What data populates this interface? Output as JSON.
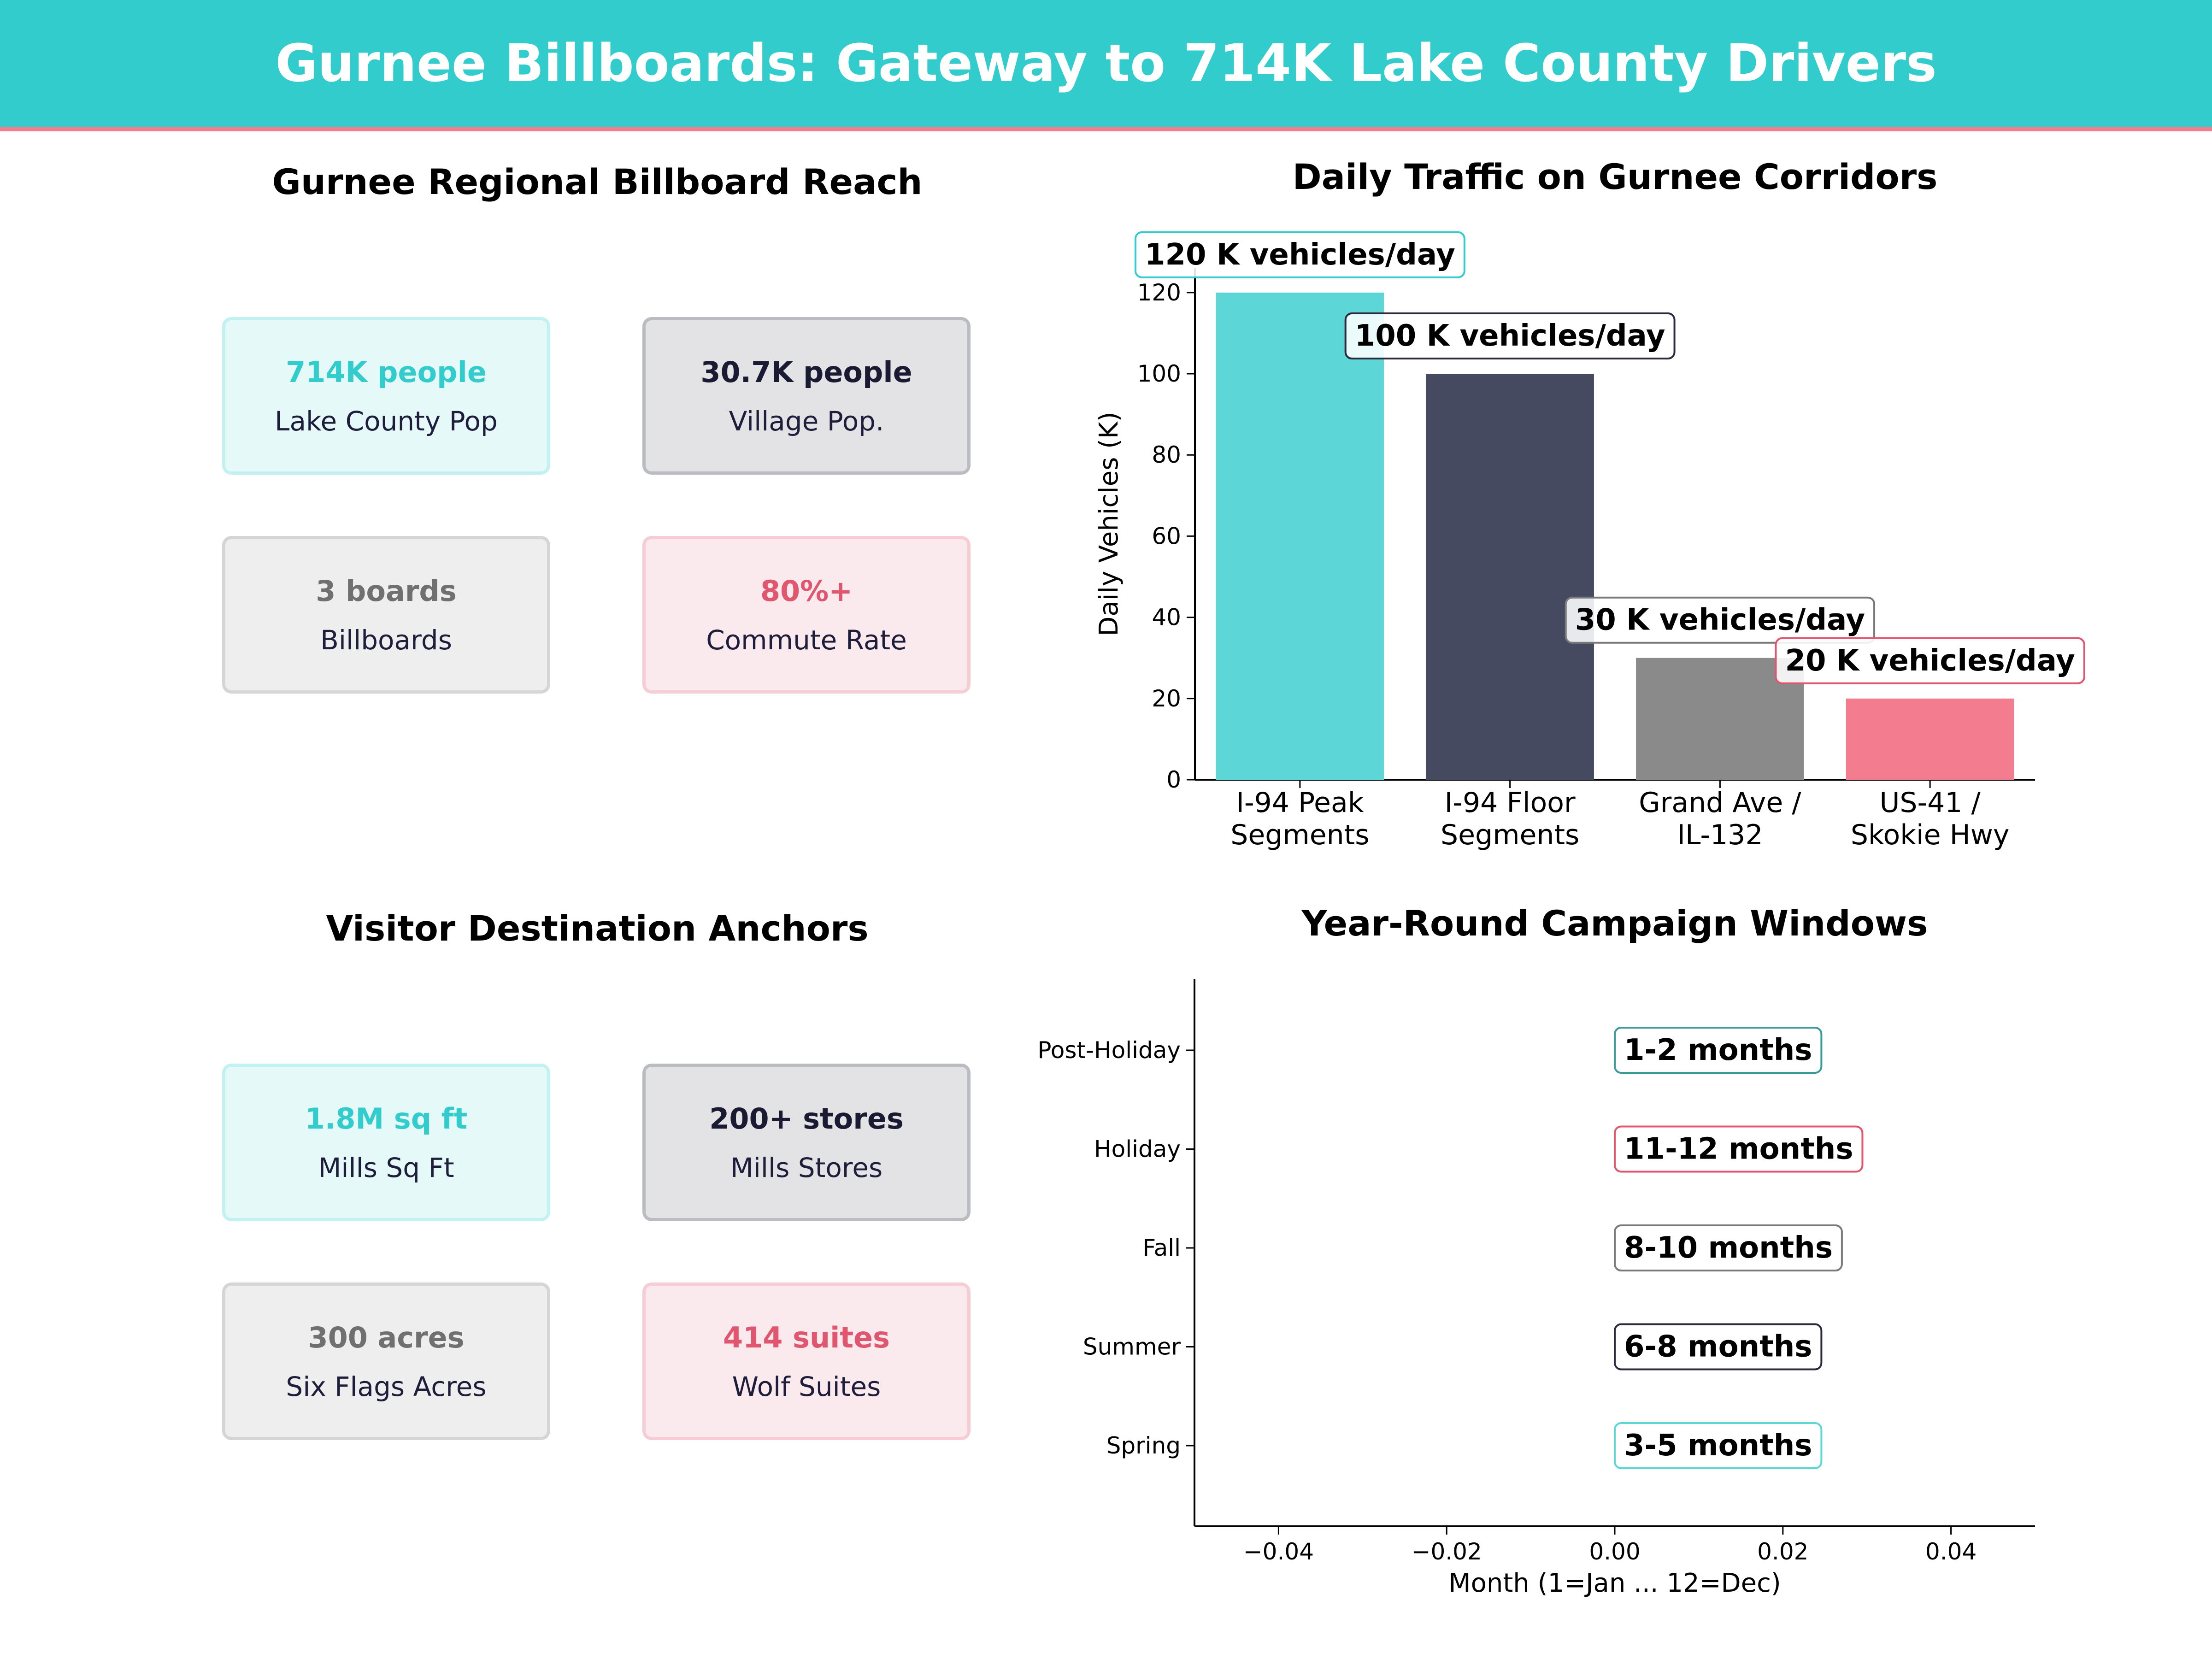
{
  "banner": {
    "title": "Gurnee Billboards: Gateway to 714K Lake County Drivers",
    "bg_color": "#33cccc",
    "rule_color": "#f47c8f"
  },
  "reach": {
    "title": "Gurnee Regional Billboard Reach",
    "cards": [
      {
        "value": "714K people",
        "label": "Lake County Pop",
        "color": "#33cccc"
      },
      {
        "value": "30.7K people",
        "label": "Village Pop.",
        "color": "#1a1a33"
      },
      {
        "value": "3 boards",
        "label": "Billboards",
        "color": "#707070"
      },
      {
        "value": "80%+",
        "label": "Commute Rate",
        "color": "#e0566f"
      }
    ]
  },
  "anchors": {
    "title": "Visitor Destination Anchors",
    "cards": [
      {
        "value": "1.8M sq ft",
        "label": "Mills Sq Ft",
        "color": "#33cccc"
      },
      {
        "value": "200+ stores",
        "label": "Mills Stores",
        "color": "#1a1a33"
      },
      {
        "value": "300 acres",
        "label": "Six Flags Acres",
        "color": "#707070"
      },
      {
        "value": "414 suites",
        "label": "Wolf Suites",
        "color": "#e0566f"
      }
    ]
  },
  "chart_data": [
    {
      "type": "bar",
      "title": "Daily Traffic on Gurnee Corridors",
      "xlabel": "",
      "ylabel": "Daily Vehicles (K)",
      "ylim": [
        0,
        126
      ],
      "yticks": [
        0,
        20,
        40,
        60,
        80,
        100,
        120
      ],
      "categories": [
        [
          "I-94 Peak",
          "Segments"
        ],
        [
          "I-94 Floor",
          "Segments"
        ],
        [
          "Grand Ave /",
          "IL-132"
        ],
        [
          "US-41 /",
          "Skokie Hwy"
        ]
      ],
      "values": [
        120,
        100,
        30,
        20
      ],
      "data_labels": [
        "120 K vehicles/day",
        "100 K vehicles/day",
        "30 K vehicles/day",
        "20 K vehicles/day"
      ],
      "colors": [
        "#5cd6d6",
        "#454a60",
        "#8a8a8a",
        "#f47c8f"
      ],
      "label_borders": [
        "#33cccc",
        "#2a2a3c",
        "#7a7a7a",
        "#e0566f"
      ],
      "grid": false,
      "legend": "none"
    },
    {
      "type": "scatter",
      "title": "Year-Round Campaign Windows",
      "xlabel": "Month (1=Jan ... 12=Dec)",
      "ylabel": "",
      "xlim": [
        -0.05,
        0.05
      ],
      "xticks": [
        -0.04,
        -0.02,
        0.0,
        0.02,
        0.04
      ],
      "xtick_labels": [
        "−0.04",
        "−0.02",
        "0.00",
        "0.02",
        "0.04"
      ],
      "categories": [
        "Spring",
        "Summer",
        "Fall",
        "Holiday",
        "Post-Holiday"
      ],
      "annotations": [
        {
          "category": "Spring",
          "x": 0.0,
          "text": "3-5 months",
          "border": "#5cd6d6"
        },
        {
          "category": "Summer",
          "x": 0.0,
          "text": "6-8 months",
          "border": "#2a2a3c"
        },
        {
          "category": "Fall",
          "x": 0.0,
          "text": "8-10 months",
          "border": "#7a7a7a"
        },
        {
          "category": "Holiday",
          "x": 0.0,
          "text": "11-12 months",
          "border": "#e0566f"
        },
        {
          "category": "Post-Holiday",
          "x": 0.0,
          "text": "1-2 months",
          "border": "#3a9a9a"
        }
      ],
      "grid": false,
      "legend": "none"
    }
  ]
}
